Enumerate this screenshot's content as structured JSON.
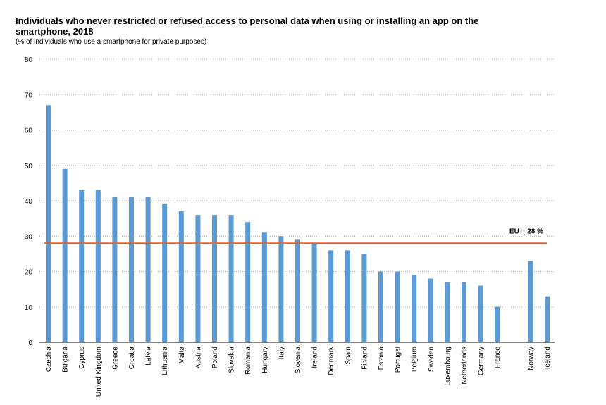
{
  "chart_data": {
    "type": "bar",
    "title": "Individuals who never restricted or refused access to personal data when using or installing an app on the smartphone, 2018",
    "subtitle": "(% of individuals who use a smartphone for private purposes)",
    "xlabel": "",
    "ylabel": "",
    "ylim": [
      0,
      80
    ],
    "yticks": [
      0,
      10,
      20,
      30,
      40,
      50,
      60,
      70,
      80
    ],
    "grid": true,
    "categories": [
      "Czechia",
      "Bulgaria",
      "Cyprus",
      "United Kingdom",
      "Greece",
      "Croatia",
      "Latvia",
      "Lithuania",
      "Malta",
      "Austria",
      "Poland",
      "Slovakia",
      "Romania",
      "Hungary",
      "Italy",
      "Slovenia",
      "Ireland",
      "Denmark",
      "Spain",
      "Finland",
      "Estonia",
      "Portugal",
      "Belgium",
      "Sweden",
      "Luxembourg",
      "Netherlands",
      "Germany",
      "France",
      "",
      "Norway",
      "Iceland"
    ],
    "values": [
      67,
      49,
      43,
      43,
      41,
      41,
      41,
      39,
      37,
      36,
      36,
      36,
      34,
      31,
      30,
      29,
      28,
      26,
      26,
      25,
      20,
      20,
      19,
      18,
      17,
      17,
      16,
      10,
      null,
      23,
      13
    ],
    "reference_line": {
      "value": 28,
      "label": "EU = 28 %",
      "color": "#e8622c"
    },
    "bar_color": "#5b9bd5",
    "grid_color": "#b0b0b0"
  }
}
